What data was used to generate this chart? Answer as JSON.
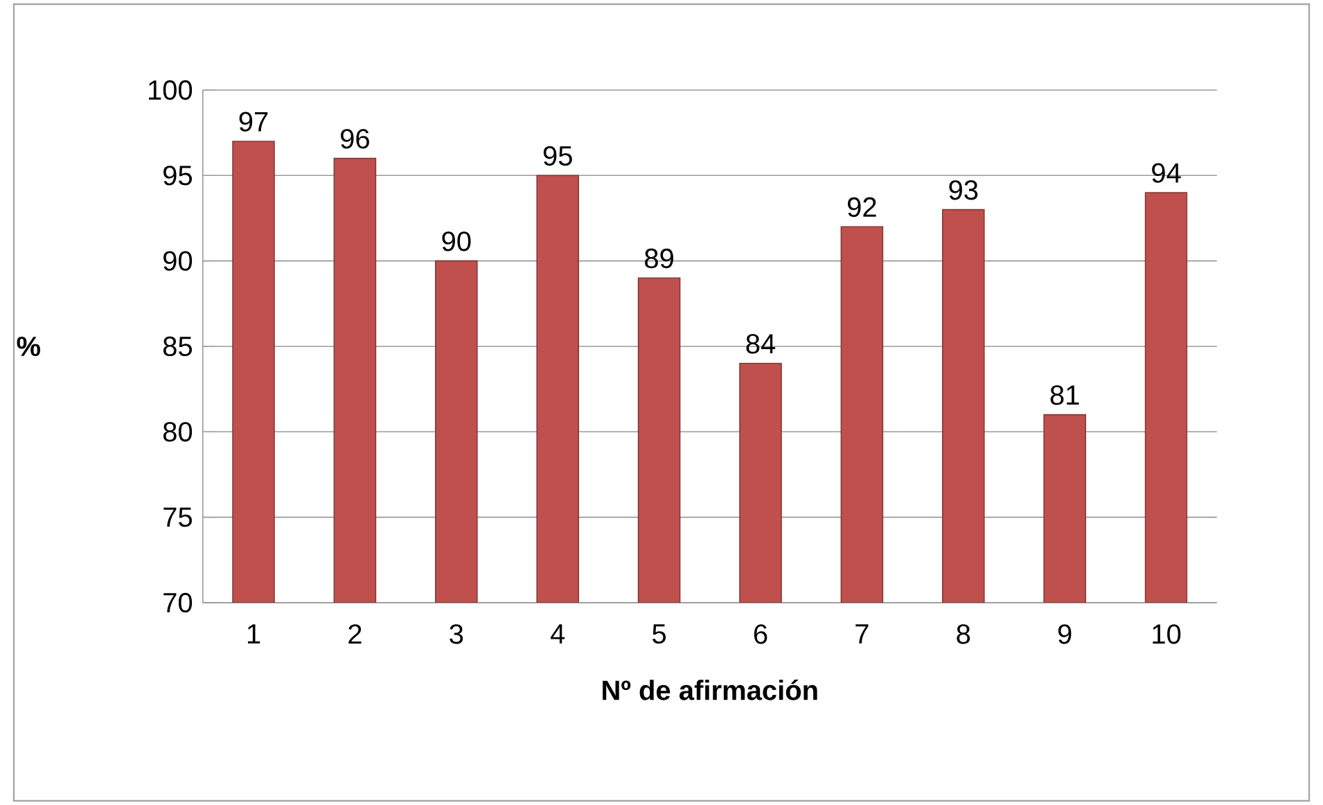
{
  "chart_data": {
    "type": "bar",
    "xlabel": "Nº de afirmación",
    "ylabel": "%",
    "categories": [
      "1",
      "2",
      "3",
      "4",
      "5",
      "6",
      "7",
      "8",
      "9",
      "10"
    ],
    "values": [
      97,
      96,
      90,
      95,
      89,
      84,
      92,
      93,
      81,
      94
    ],
    "color": "#c0504d",
    "ylim": [
      70,
      100
    ],
    "yticks": [
      70,
      75,
      80,
      85,
      90,
      95,
      100
    ],
    "grid": "y",
    "data_labels": true
  }
}
